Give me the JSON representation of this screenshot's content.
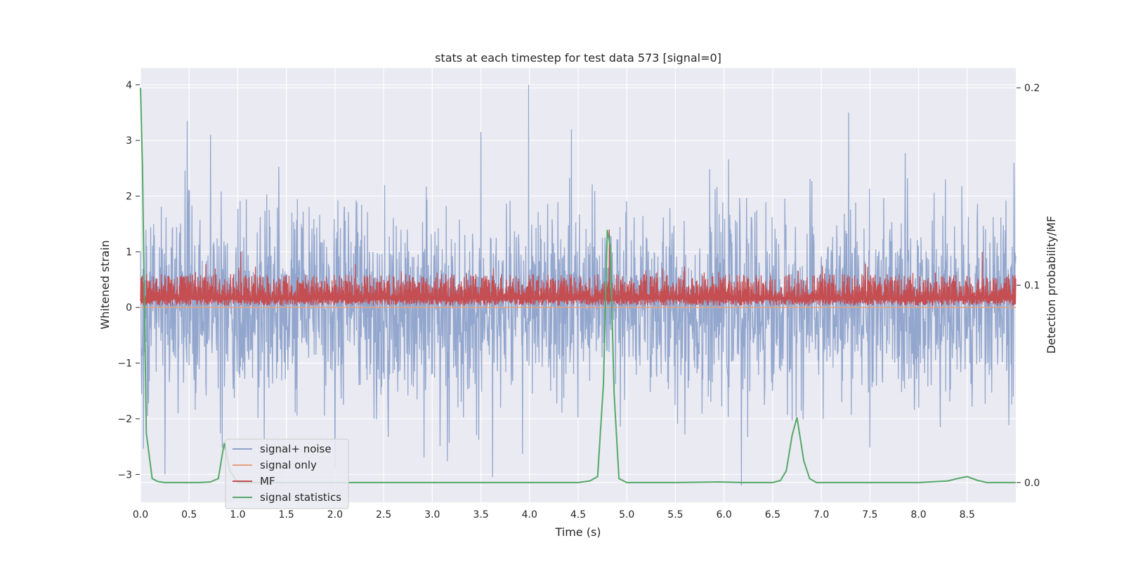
{
  "chart_data": {
    "type": "line",
    "title": "stats at each timestep for test data 573 [signal=0]",
    "xlabel": "Time (s)",
    "ylabel": "Whitened strain",
    "y2label": "Detection probability/MF",
    "xlim": [
      0.0,
      9.0
    ],
    "ylim": [
      -3.5,
      4.3
    ],
    "y2lim": [
      -0.01,
      0.21
    ],
    "xticks": [
      "0.0",
      "0.5",
      "1.0",
      "1.5",
      "2.0",
      "2.5",
      "3.0",
      "3.5",
      "4.0",
      "4.5",
      "5.0",
      "5.5",
      "6.0",
      "6.5",
      "7.0",
      "7.5",
      "8.0",
      "8.5"
    ],
    "xtick_values": [
      0,
      0.5,
      1,
      1.5,
      2,
      2.5,
      3,
      3.5,
      4,
      4.5,
      5,
      5.5,
      6,
      6.5,
      7,
      7.5,
      8,
      8.5
    ],
    "yticks": [
      "−3",
      "−2",
      "−1",
      "0",
      "1",
      "2",
      "3",
      "4"
    ],
    "ytick_values": [
      -3,
      -2,
      -1,
      0,
      1,
      2,
      3,
      4
    ],
    "y2ticks": [
      "0.0",
      "0.1",
      "0.2"
    ],
    "y2tick_values": [
      0.0,
      0.1,
      0.2
    ],
    "grid": true,
    "legend_position": "lower-left",
    "series": [
      {
        "name": "signal+ noise",
        "color": "#8ea3cb",
        "axis": "left",
        "style": "dense-noise",
        "mean": 0.0,
        "typical_abs": 1.5,
        "peaks": [
          {
            "x": 0.48,
            "y": 3.35
          },
          {
            "x": 0.72,
            "y": 3.1
          },
          {
            "x": 3.5,
            "y": 3.15
          },
          {
            "x": 3.99,
            "y": 4.0
          },
          {
            "x": 4.43,
            "y": 3.2
          },
          {
            "x": 7.28,
            "y": 3.5
          },
          {
            "x": 6.18,
            "y": -3.2
          },
          {
            "x": 3.62,
            "y": -3.05
          },
          {
            "x": 2.0,
            "y": -2.9
          },
          {
            "x": 0.25,
            "y": -3.0
          },
          {
            "x": 8.98,
            "y": 2.6
          }
        ]
      },
      {
        "name": "signal only",
        "color": "#e8a07c",
        "axis": "left",
        "x": [
          0.0,
          9.0
        ],
        "y": [
          0.0,
          0.0
        ]
      },
      {
        "name": "MF",
        "color": "#c44e52",
        "axis": "left",
        "style": "dense-band",
        "baseline": 0.03,
        "typical_top": 0.6,
        "peaks": [
          {
            "x": 1.03,
            "y": 1.0
          },
          {
            "x": 4.82,
            "y": 1.4
          },
          {
            "x": 8.65,
            "y": 1.0
          }
        ]
      },
      {
        "name": "signal statistics",
        "color": "#55a868",
        "axis": "right",
        "x": [
          0.0,
          0.02,
          0.06,
          0.12,
          0.18,
          0.25,
          0.4,
          0.6,
          0.72,
          0.8,
          0.86,
          0.92,
          1.0,
          1.5,
          2.0,
          2.5,
          3.0,
          3.5,
          4.0,
          4.5,
          4.62,
          4.7,
          4.76,
          4.8,
          4.83,
          4.87,
          4.92,
          5.0,
          5.5,
          5.95,
          6.2,
          6.5,
          6.58,
          6.64,
          6.7,
          6.75,
          6.82,
          6.88,
          6.95,
          7.5,
          8.0,
          8.3,
          8.4,
          8.5,
          8.6,
          8.7,
          9.0
        ],
        "y": [
          0.2,
          0.16,
          0.025,
          0.002,
          0.0005,
          0.0,
          0.0,
          0.0,
          0.0003,
          0.002,
          0.02,
          0.006,
          0.0,
          0.0,
          0.0,
          0.0,
          0.0,
          0.0,
          0.0,
          0.0,
          0.0008,
          0.003,
          0.05,
          0.128,
          0.12,
          0.045,
          0.002,
          0.0,
          0.0,
          0.0003,
          0.0,
          0.0,
          0.001,
          0.006,
          0.024,
          0.033,
          0.011,
          0.002,
          0.0,
          0.0,
          0.0,
          0.0008,
          0.002,
          0.003,
          0.0012,
          0.0,
          0.0
        ]
      }
    ]
  }
}
